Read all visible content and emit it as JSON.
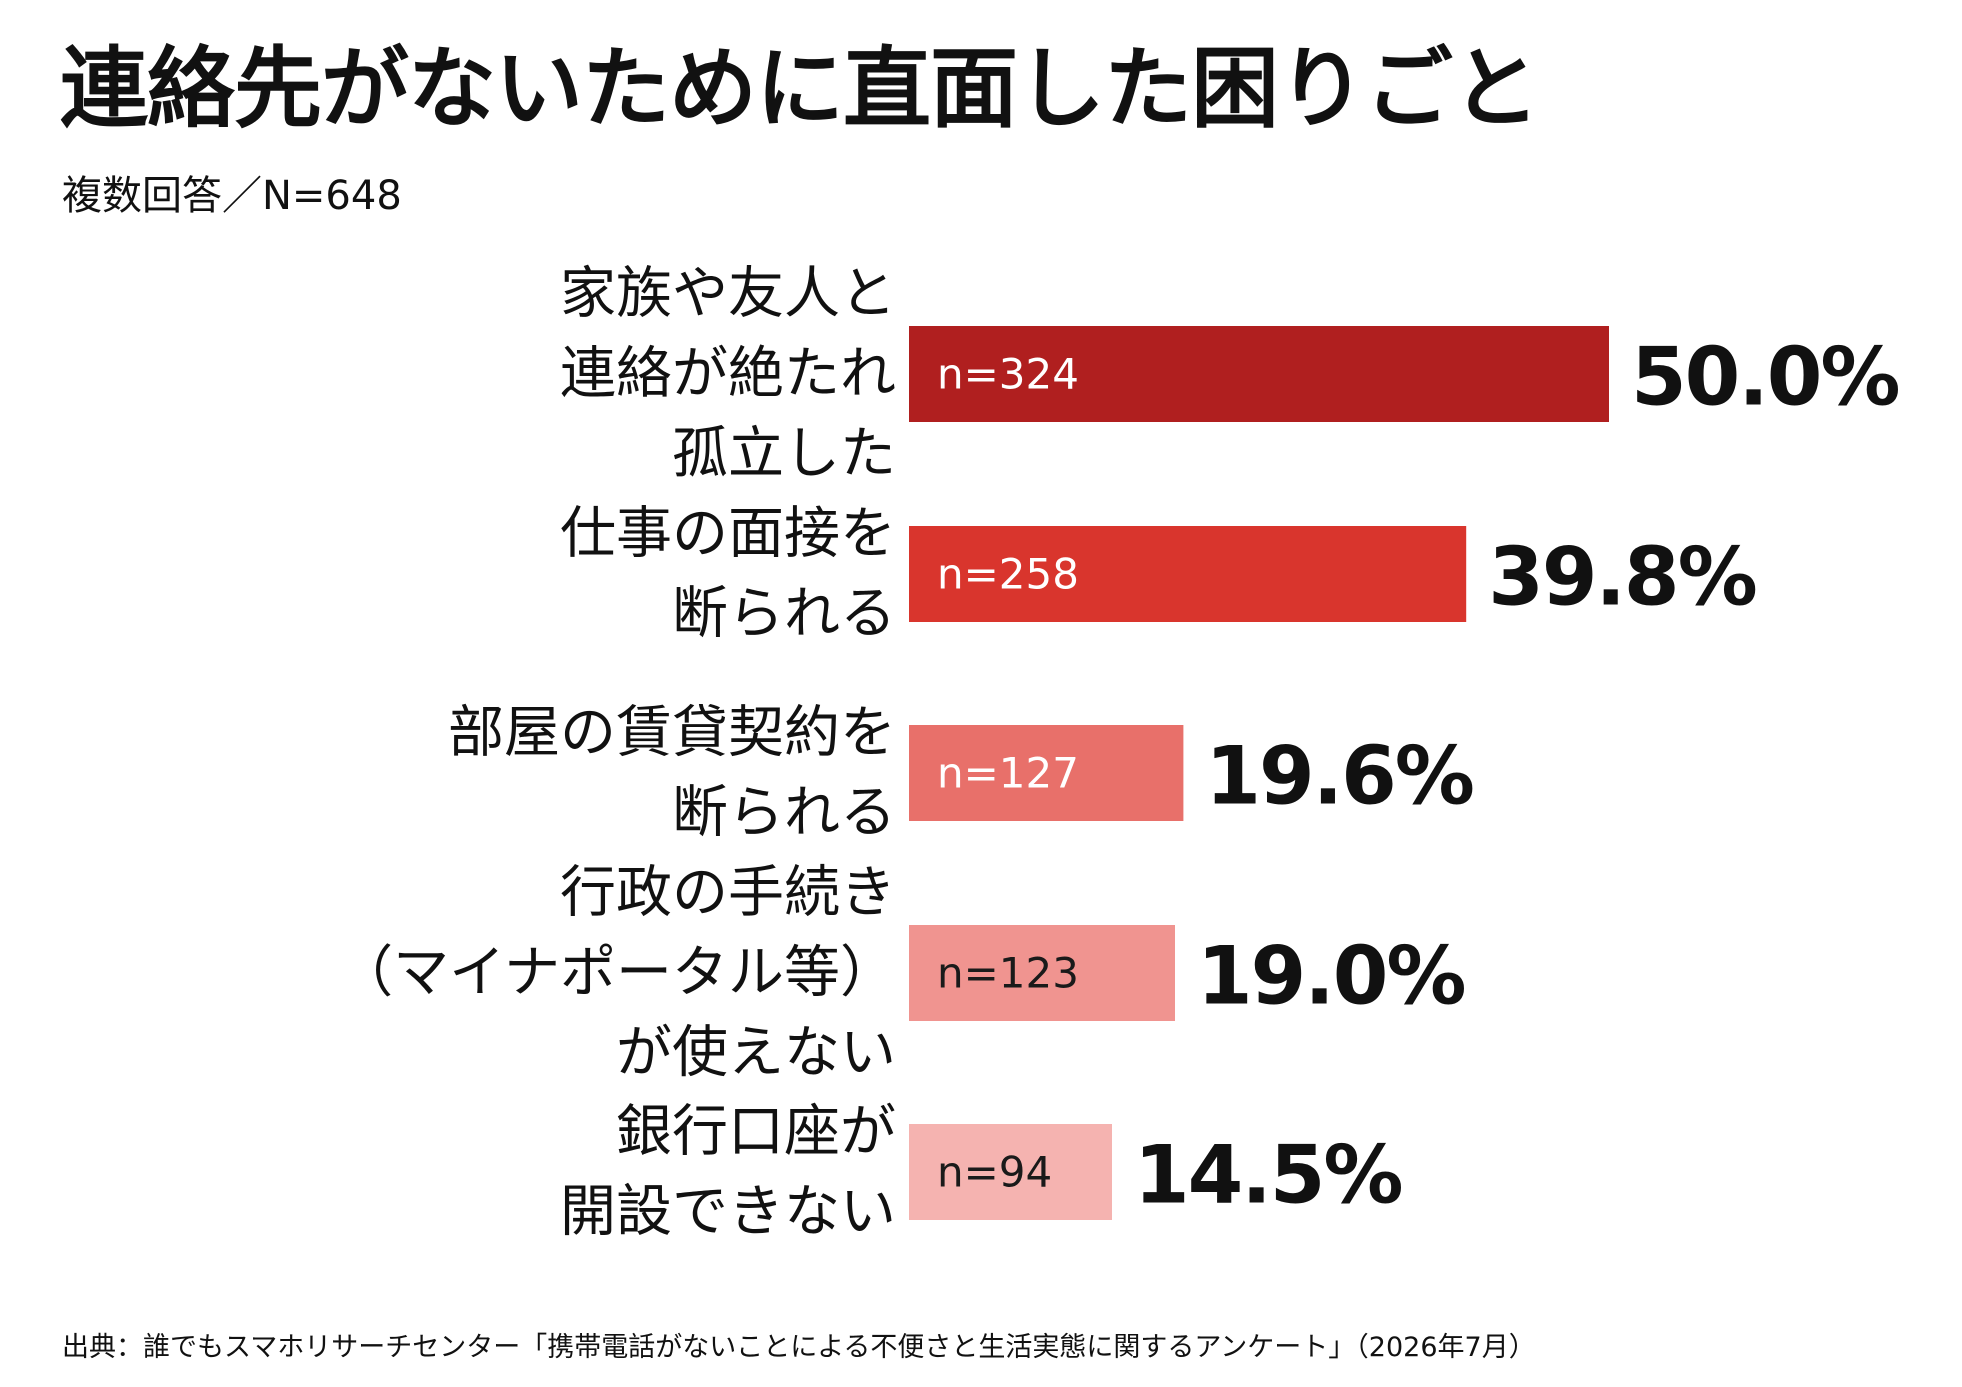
{
  "chart_data": {
    "type": "bar",
    "orientation": "horizontal",
    "title": "連絡先がないために直面した困りごと",
    "subtitle": "複数回答／N=648",
    "source": "出典：誰でもスマホリサーチセンター「携帯電話がないことによる不便さと生活実態に関するアンケート」（2026年7月）",
    "xlim": [
      0,
      50
    ],
    "grid": false,
    "legend": "none",
    "categories": [
      [
        "家族や友人と",
        "連絡が絶たれ",
        "孤立した"
      ],
      [
        "仕事の面接を",
        "断られる"
      ],
      [
        "部屋の賃貸契約を",
        "断られる"
      ],
      [
        "行政の手続き",
        "（マイナポータル等）",
        "が使えない"
      ],
      [
        "銀行口座が",
        "開設できない"
      ]
    ],
    "values": [
      50.0,
      39.8,
      19.6,
      19.0,
      14.5
    ],
    "value_labels": [
      "50.0%",
      "39.8%",
      "19.6%",
      "19.0%",
      "14.5%"
    ],
    "counts": [
      "n=324",
      "n=258",
      "n=127",
      "n=123",
      "n=94"
    ],
    "colors": [
      "#b01f1f",
      "#d9352d",
      "#e8706a",
      "#f09490",
      "#f5b3b0"
    ]
  }
}
